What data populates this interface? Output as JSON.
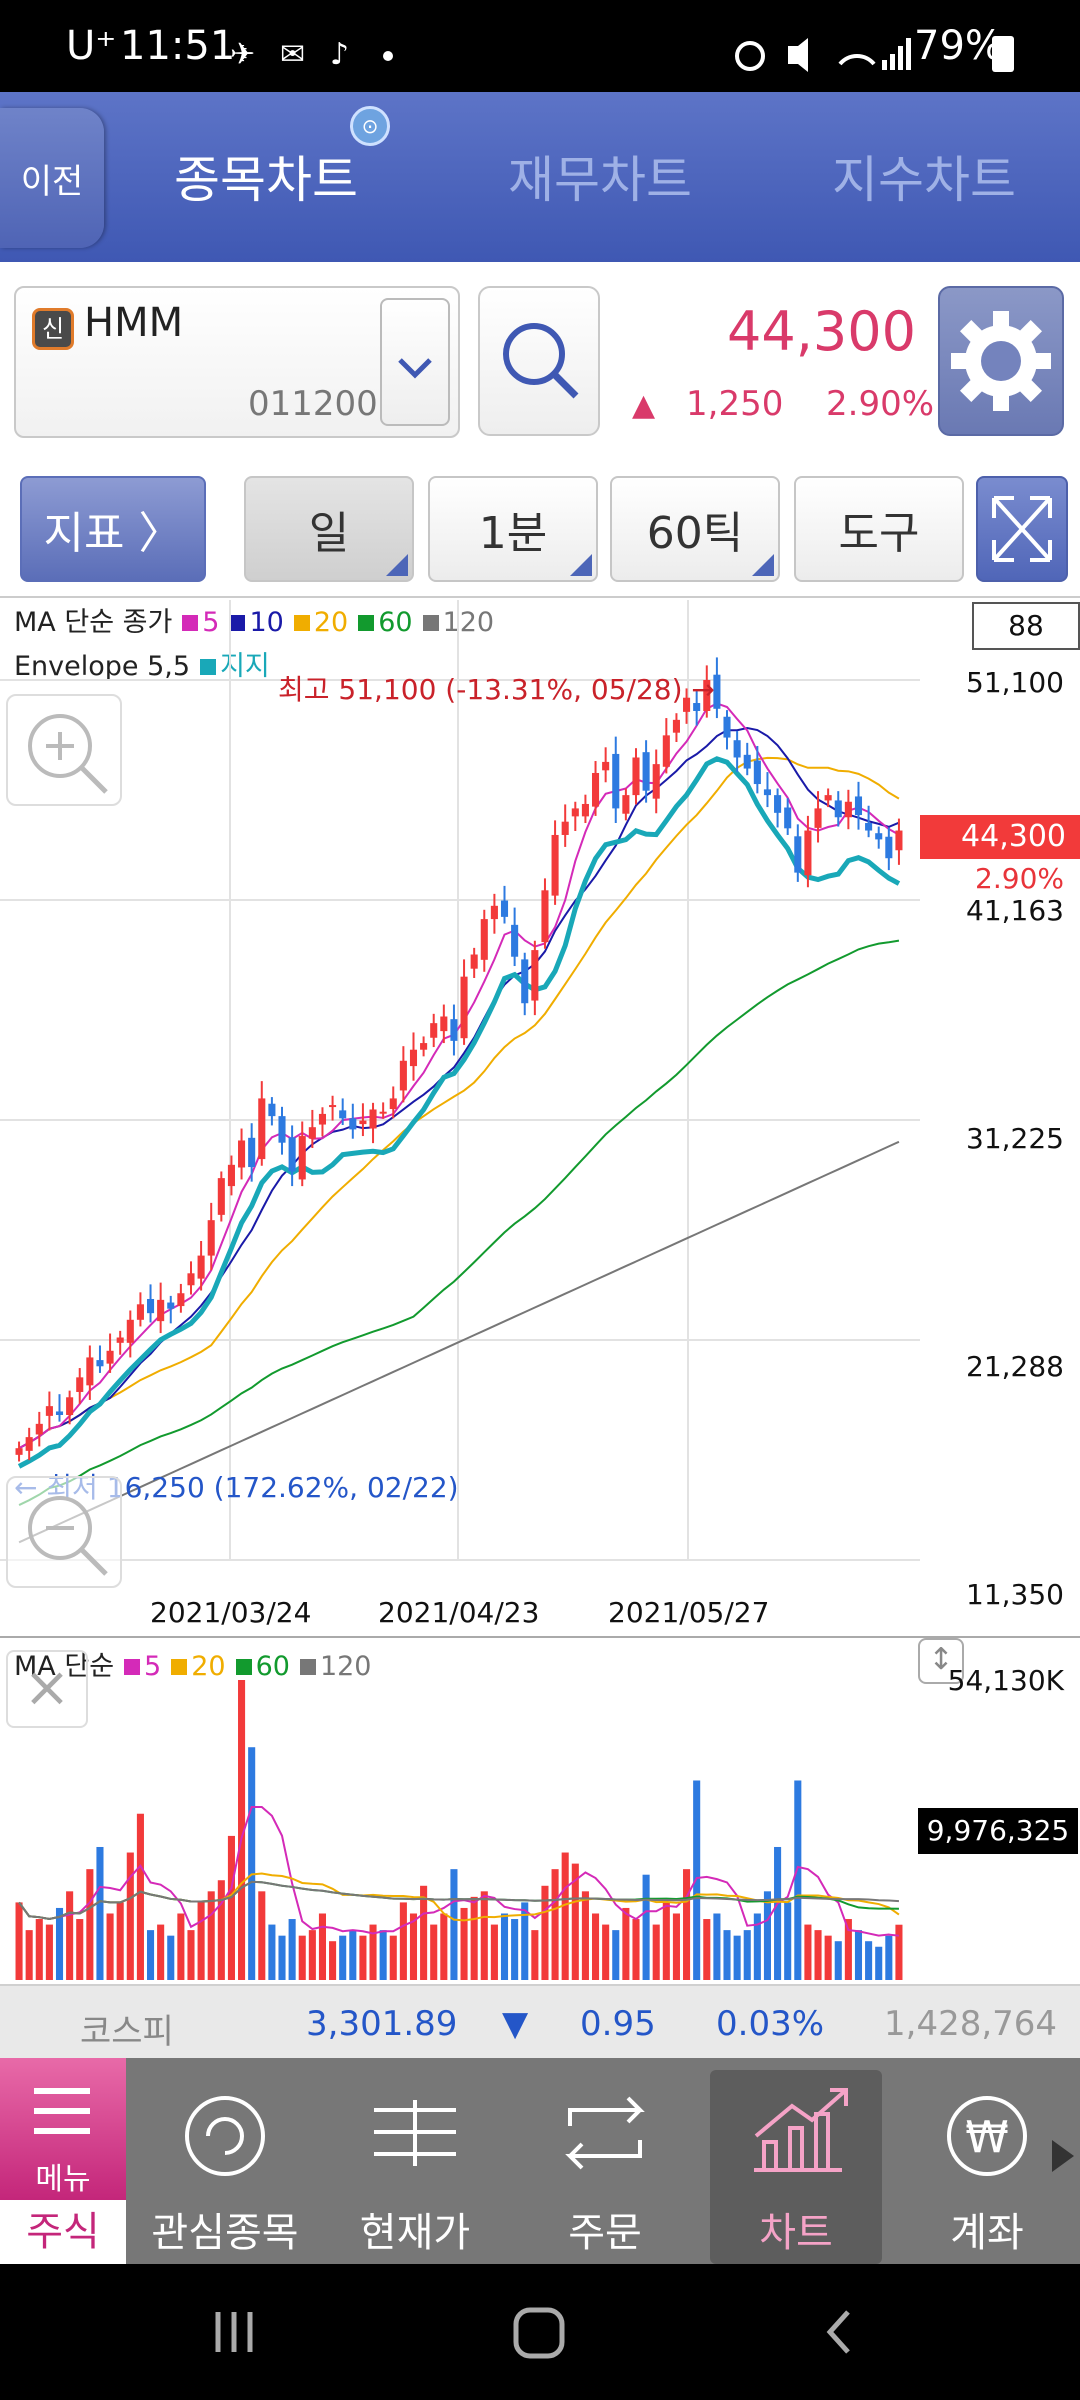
{
  "status_bar": {
    "carrier": "U⁺",
    "time": "11:51",
    "battery": "79%"
  },
  "header": {
    "back_label": "이전",
    "tabs": [
      {
        "label": "종목차트",
        "active": true
      },
      {
        "label": "재무차트",
        "active": false
      },
      {
        "label": "지수차트",
        "active": false
      }
    ]
  },
  "stock": {
    "badge": "신",
    "name": "HMM",
    "code": "011200",
    "price": "44,300",
    "change_arrow": "▲",
    "change": "1,250",
    "change_pct": "2.90%"
  },
  "toolbar": {
    "indicator_label": "지표 〉",
    "period_label": "일",
    "minute_label": "1분",
    "tick_label": "60틱",
    "tool_label": "도구"
  },
  "chart": {
    "legend_ma_prefix": "MA 단순 종가",
    "legend_env_prefix": "Envelope 5,5",
    "legend_env_item": "지지",
    "colors": {
      "ma5": "#d42ab8",
      "ma10": "#1a1aa8",
      "ma20": "#f0ad00",
      "ma60": "#129a2e",
      "ma120": "#777777",
      "env": "#19a8b8",
      "up": "#f23a3a",
      "down": "#2d7ae0"
    },
    "count_box": "88",
    "high_annotation": "최고 51,100 (-13.31%, 05/28) →",
    "low_annotation": "← 최저 16,250 (172.62%, 02/22)",
    "price_badge": "44,300",
    "price_pct": "2.90%"
  },
  "volume": {
    "legend_prefix": "MA 단순",
    "max_label": "54,130K",
    "current_badge": "9,976,325"
  },
  "chart_data": {
    "type": "candlestick",
    "title": "",
    "ma_legend": [
      {
        "name": "5",
        "color": "#d42ab8"
      },
      {
        "name": "10",
        "color": "#1a1aa8"
      },
      {
        "name": "20",
        "color": "#f0ad00"
      },
      {
        "name": "60",
        "color": "#129a2e"
      },
      {
        "name": "120",
        "color": "#777777"
      }
    ],
    "volume_ma_legend": [
      {
        "name": "5",
        "color": "#d42ab8"
      },
      {
        "name": "20",
        "color": "#f0ad00"
      },
      {
        "name": "60",
        "color": "#129a2e"
      },
      {
        "name": "120",
        "color": "#777777"
      }
    ],
    "y_ticks": [
      "51,100",
      "41,163",
      "31,225",
      "21,288",
      "11,350"
    ],
    "x_ticks": [
      "2021/03/24",
      "2021/04/23",
      "2021/05/27"
    ],
    "ylim": [
      11350,
      51100
    ],
    "close": [
      16400,
      16900,
      17500,
      18300,
      17900,
      18700,
      19600,
      20500,
      20100,
      20800,
      21400,
      22200,
      22900,
      22500,
      23100,
      22700,
      23400,
      24300,
      25100,
      26700,
      28600,
      29200,
      30300,
      29100,
      32200,
      31400,
      30200,
      28900,
      30500,
      30900,
      31500,
      31900,
      31300,
      30800,
      31200,
      31700,
      31600,
      32200,
      33900,
      34400,
      34700,
      35600,
      35900,
      34800,
      37700,
      38700,
      40300,
      40900,
      40400,
      38600,
      36500,
      38900,
      41600,
      44100,
      44700,
      45300,
      45500,
      46900,
      47400,
      45300,
      45900,
      47600,
      46100,
      47300,
      48600,
      49300,
      50300,
      49700,
      51100,
      49800,
      48500,
      47600,
      47100,
      46400,
      45900,
      45100,
      44400,
      42400,
      44300,
      45300,
      45900,
      44900,
      45600,
      45000,
      44300,
      43900,
      43050,
      44300
    ],
    "volume": [
      14000,
      9000,
      11000,
      10000,
      13000,
      16000,
      11000,
      20000,
      24000,
      12000,
      14000,
      23000,
      30000,
      9000,
      10000,
      8000,
      12000,
      9000,
      14000,
      16000,
      18000,
      26000,
      54130,
      42000,
      16000,
      10000,
      8000,
      11000,
      8000,
      9000,
      12000,
      7000,
      8000,
      9000,
      8000,
      10000,
      9000,
      8000,
      14000,
      12000,
      17000,
      10000,
      12000,
      20000,
      13000,
      15000,
      16000,
      10000,
      12000,
      11000,
      14000,
      9000,
      17000,
      20000,
      23000,
      21000,
      16000,
      12000,
      10000,
      9000,
      13000,
      11000,
      19000,
      10000,
      14000,
      12000,
      20000,
      36000,
      11000,
      12000,
      9000,
      8000,
      9000,
      12000,
      16000,
      24000,
      14000,
      36000,
      10000,
      9000,
      8000,
      7000,
      11000,
      9000,
      7000,
      6000,
      8000,
      9976
    ]
  },
  "kospi": {
    "label": "코스피",
    "value": "3,301.89",
    "arrow": "▼",
    "change": "0.95",
    "pct": "0.03%",
    "volume": "1,428,764"
  },
  "nav": {
    "menu_label": "메뉴",
    "category": "주식",
    "items": [
      {
        "label": "관심종목",
        "icon": "refresh-star-icon"
      },
      {
        "label": "현재가",
        "icon": "price-ladder-icon"
      },
      {
        "label": "주문",
        "icon": "swap-arrows-icon"
      },
      {
        "label": "차트",
        "icon": "chart-up-icon",
        "active": true
      },
      {
        "label": "계좌",
        "icon": "won-coin-icon"
      }
    ]
  }
}
